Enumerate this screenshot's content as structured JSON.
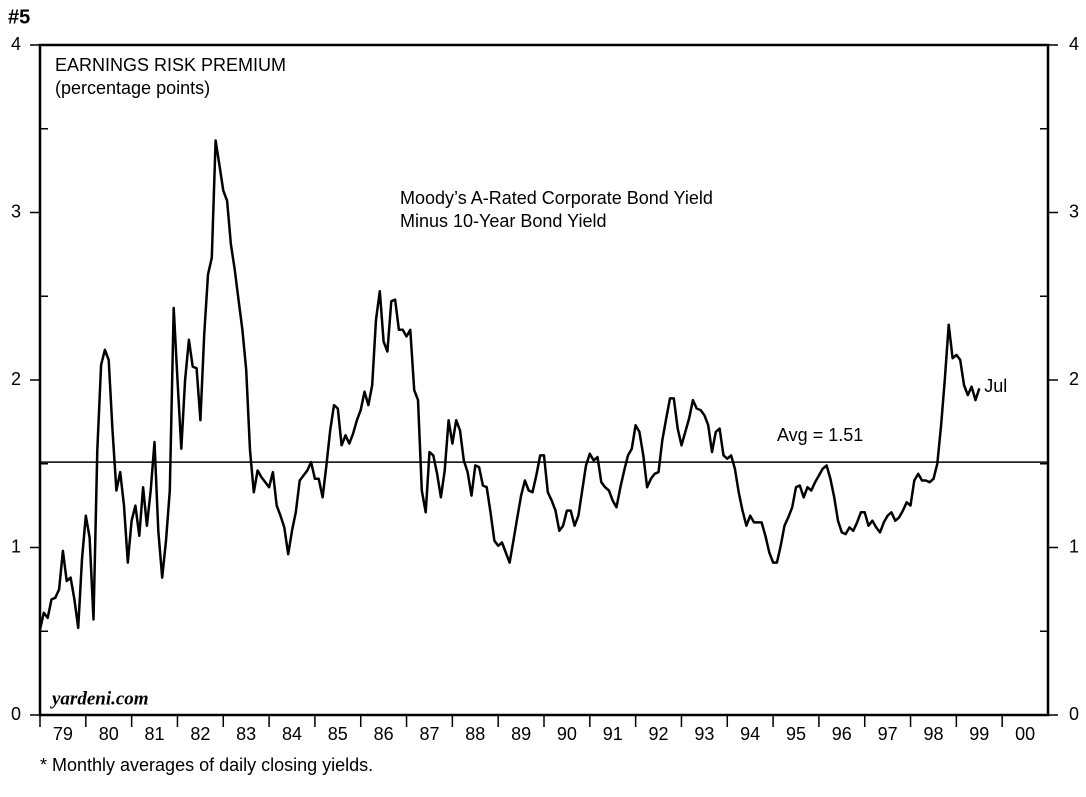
{
  "chart_data": {
    "type": "line",
    "label": "#5",
    "title": "EARNINGS RISK PREMIUM",
    "subtitle": "(percentage points)",
    "annotation_lines": [
      "Moody’s A-Rated Corporate Bond Yield",
      "Minus 10-Year Bond Yield"
    ],
    "end_label": "Jul",
    "reference_line": {
      "value": 1.51,
      "label": "Avg = 1.51"
    },
    "source": "yardeni.com",
    "footnote": "* Monthly averages of daily closing yields.",
    "color": "#000000",
    "xlim": [
      1979,
      2001
    ],
    "ylim": [
      0,
      4
    ],
    "yticks": [
      0,
      1,
      2,
      3,
      4
    ],
    "yticks_minor": [
      0.5,
      1.5,
      2.5,
      3.5
    ],
    "xticks": [
      {
        "value": 1979,
        "label": "79"
      },
      {
        "value": 1980,
        "label": "80"
      },
      {
        "value": 1981,
        "label": "81"
      },
      {
        "value": 1982,
        "label": "82"
      },
      {
        "value": 1983,
        "label": "83"
      },
      {
        "value": 1984,
        "label": "84"
      },
      {
        "value": 1985,
        "label": "85"
      },
      {
        "value": 1986,
        "label": "86"
      },
      {
        "value": 1987,
        "label": "87"
      },
      {
        "value": 1988,
        "label": "88"
      },
      {
        "value": 1989,
        "label": "89"
      },
      {
        "value": 1990,
        "label": "90"
      },
      {
        "value": 1991,
        "label": "91"
      },
      {
        "value": 1992,
        "label": "92"
      },
      {
        "value": 1993,
        "label": "93"
      },
      {
        "value": 1994,
        "label": "94"
      },
      {
        "value": 1995,
        "label": "95"
      },
      {
        "value": 1996,
        "label": "96"
      },
      {
        "value": 1997,
        "label": "97"
      },
      {
        "value": 1998,
        "label": "98"
      },
      {
        "value": 1999,
        "label": "99"
      },
      {
        "value": 2000,
        "label": "00"
      }
    ],
    "x": [
      1979,
      1979.083,
      1979.167,
      1979.25,
      1979.333,
      1979.417,
      1979.5,
      1979.583,
      1979.667,
      1979.75,
      1979.833,
      1979.917,
      1980,
      1980.083,
      1980.167,
      1980.25,
      1980.333,
      1980.417,
      1980.5,
      1980.583,
      1980.667,
      1980.75,
      1980.833,
      1980.917,
      1981,
      1981.083,
      1981.167,
      1981.25,
      1981.333,
      1981.417,
      1981.5,
      1981.583,
      1981.667,
      1981.75,
      1981.833,
      1981.917,
      1982,
      1982.083,
      1982.167,
      1982.25,
      1982.333,
      1982.417,
      1982.5,
      1982.583,
      1982.667,
      1982.75,
      1982.833,
      1982.917,
      1983,
      1983.083,
      1983.167,
      1983.25,
      1983.333,
      1983.417,
      1983.5,
      1983.583,
      1983.667,
      1983.75,
      1983.833,
      1983.917,
      1984,
      1984.083,
      1984.167,
      1984.25,
      1984.333,
      1984.417,
      1984.5,
      1984.583,
      1984.667,
      1984.75,
      1984.833,
      1984.917,
      1985,
      1985.083,
      1985.167,
      1985.25,
      1985.333,
      1985.417,
      1985.5,
      1985.583,
      1985.667,
      1985.75,
      1985.833,
      1985.917,
      1986,
      1986.083,
      1986.167,
      1986.25,
      1986.333,
      1986.417,
      1986.5,
      1986.583,
      1986.667,
      1986.75,
      1986.833,
      1986.917,
      1987,
      1987.083,
      1987.167,
      1987.25,
      1987.333,
      1987.417,
      1987.5,
      1987.583,
      1987.667,
      1987.75,
      1987.833,
      1987.917,
      1988,
      1988.083,
      1988.167,
      1988.25,
      1988.333,
      1988.417,
      1988.5,
      1988.583,
      1988.667,
      1988.75,
      1988.833,
      1988.917,
      1989,
      1989.083,
      1989.167,
      1989.25,
      1989.333,
      1989.417,
      1989.5,
      1989.583,
      1989.667,
      1989.75,
      1989.833,
      1989.917,
      1990,
      1990.083,
      1990.167,
      1990.25,
      1990.333,
      1990.417,
      1990.5,
      1990.583,
      1990.667,
      1990.75,
      1990.833,
      1990.917,
      1991,
      1991.083,
      1991.167,
      1991.25,
      1991.333,
      1991.417,
      1991.5,
      1991.583,
      1991.667,
      1991.75,
      1991.833,
      1991.917,
      1992,
      1992.083,
      1992.167,
      1992.25,
      1992.333,
      1992.417,
      1992.5,
      1992.583,
      1992.667,
      1992.75,
      1992.833,
      1992.917,
      1993,
      1993.083,
      1993.167,
      1993.25,
      1993.333,
      1993.417,
      1993.5,
      1993.583,
      1993.667,
      1993.75,
      1993.833,
      1993.917,
      1994,
      1994.083,
      1994.167,
      1994.25,
      1994.333,
      1994.417,
      1994.5,
      1994.583,
      1994.667,
      1994.75,
      1994.833,
      1994.917,
      1995,
      1995.083,
      1995.167,
      1995.25,
      1995.333,
      1995.417,
      1995.5,
      1995.583,
      1995.667,
      1995.75,
      1995.833,
      1995.917,
      1996,
      1996.083,
      1996.167,
      1996.25,
      1996.333,
      1996.417,
      1996.5,
      1996.583,
      1996.667,
      1996.75,
      1996.833,
      1996.917,
      1997,
      1997.083,
      1997.167,
      1997.25,
      1997.333,
      1997.417,
      1997.5,
      1997.583,
      1997.667,
      1997.75,
      1997.833,
      1997.917,
      1998,
      1998.083,
      1998.167,
      1998.25,
      1998.333,
      1998.417,
      1998.5,
      1998.583,
      1998.667,
      1998.75,
      1998.833,
      1998.917,
      1999,
      1999.083,
      1999.167,
      1999.25,
      1999.333,
      1999.417,
      1999.5
    ],
    "values": [
      0.51,
      0.61,
      0.58,
      0.69,
      0.7,
      0.75,
      0.98,
      0.8,
      0.82,
      0.69,
      0.52,
      0.93,
      1.19,
      1.06,
      0.57,
      1.58,
      2.09,
      2.18,
      2.12,
      1.7,
      1.34,
      1.45,
      1.25,
      0.91,
      1.16,
      1.25,
      1.07,
      1.36,
      1.13,
      1.34,
      1.63,
      1.1,
      0.82,
      1.04,
      1.34,
      2.43,
      2.0,
      1.59,
      2.0,
      2.24,
      2.08,
      2.07,
      1.76,
      2.27,
      2.63,
      2.73,
      3.43,
      3.28,
      3.13,
      3.07,
      2.81,
      2.66,
      2.48,
      2.3,
      2.06,
      1.58,
      1.33,
      1.46,
      1.42,
      1.39,
      1.36,
      1.45,
      1.25,
      1.19,
      1.12,
      0.96,
      1.1,
      1.21,
      1.4,
      1.43,
      1.46,
      1.51,
      1.41,
      1.41,
      1.3,
      1.49,
      1.7,
      1.85,
      1.83,
      1.61,
      1.67,
      1.62,
      1.68,
      1.76,
      1.82,
      1.93,
      1.85,
      1.97,
      2.36,
      2.53,
      2.23,
      2.17,
      2.47,
      2.48,
      2.3,
      2.3,
      2.26,
      2.3,
      1.94,
      1.88,
      1.34,
      1.21,
      1.57,
      1.55,
      1.44,
      1.3,
      1.46,
      1.76,
      1.62,
      1.76,
      1.7,
      1.52,
      1.45,
      1.31,
      1.49,
      1.48,
      1.37,
      1.36,
      1.21,
      1.04,
      1.01,
      1.03,
      0.97,
      0.91,
      1.04,
      1.18,
      1.31,
      1.4,
      1.34,
      1.33,
      1.43,
      1.55,
      1.55,
      1.33,
      1.28,
      1.22,
      1.1,
      1.13,
      1.22,
      1.22,
      1.13,
      1.19,
      1.34,
      1.49,
      1.56,
      1.52,
      1.54,
      1.39,
      1.36,
      1.34,
      1.28,
      1.24,
      1.36,
      1.46,
      1.55,
      1.59,
      1.73,
      1.69,
      1.55,
      1.36,
      1.41,
      1.44,
      1.45,
      1.64,
      1.77,
      1.89,
      1.89,
      1.71,
      1.61,
      1.69,
      1.77,
      1.88,
      1.83,
      1.82,
      1.79,
      1.73,
      1.57,
      1.69,
      1.71,
      1.55,
      1.53,
      1.55,
      1.47,
      1.33,
      1.22,
      1.13,
      1.19,
      1.15,
      1.15,
      1.15,
      1.07,
      0.97,
      0.91,
      0.91,
      1.01,
      1.13,
      1.18,
      1.24,
      1.36,
      1.37,
      1.3,
      1.36,
      1.34,
      1.39,
      1.43,
      1.47,
      1.49,
      1.41,
      1.3,
      1.16,
      1.09,
      1.08,
      1.12,
      1.1,
      1.15,
      1.21,
      1.21,
      1.13,
      1.16,
      1.12,
      1.09,
      1.15,
      1.19,
      1.21,
      1.16,
      1.18,
      1.22,
      1.27,
      1.25,
      1.4,
      1.44,
      1.4,
      1.4,
      1.39,
      1.41,
      1.5,
      1.73,
      2.01,
      2.33,
      2.13,
      2.15,
      2.12,
      1.97,
      1.91,
      1.96,
      1.88,
      1.95
    ]
  }
}
